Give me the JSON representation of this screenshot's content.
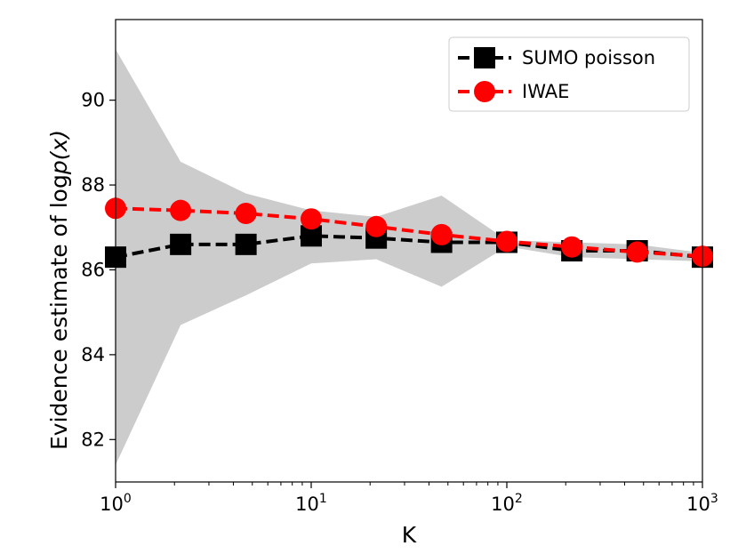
{
  "chart_data": {
    "type": "line",
    "title": "",
    "xlabel": "K",
    "ylabel_prefix": "Evidence estimate of log",
    "ylabel_math": "p(x)",
    "xscale": "log",
    "xlim": [
      1,
      1000
    ],
    "ylim": [
      81.0,
      91.9
    ],
    "x_ticks": [
      {
        "base": "10",
        "exp": "0",
        "value": 1
      },
      {
        "base": "10",
        "exp": "1",
        "value": 10
      },
      {
        "base": "10",
        "exp": "2",
        "value": 100
      },
      {
        "base": "10",
        "exp": "3",
        "value": 1000
      }
    ],
    "y_ticks": [
      82,
      84,
      86,
      88,
      90
    ],
    "x": [
      1,
      2.15,
      4.64,
      10,
      21.5,
      46.4,
      100,
      215,
      464,
      1000
    ],
    "series": [
      {
        "name": "SUMO poisson",
        "color": "#000000",
        "marker": "square",
        "values": [
          86.3,
          86.6,
          86.6,
          86.8,
          86.75,
          86.65,
          86.65,
          86.45,
          86.45,
          86.3
        ],
        "band_upper": [
          91.2,
          88.55,
          87.8,
          87.4,
          87.25,
          87.75,
          86.7,
          86.65,
          86.6,
          86.4
        ],
        "band_lower": [
          81.4,
          84.7,
          85.4,
          86.15,
          86.25,
          85.6,
          86.55,
          86.3,
          86.25,
          86.2
        ]
      },
      {
        "name": "IWAE",
        "color": "#ff0000",
        "marker": "circle",
        "values": [
          87.45,
          87.4,
          87.33,
          87.2,
          87.02,
          86.83,
          86.67,
          86.54,
          86.42,
          86.32
        ]
      }
    ],
    "band_color": "#cccccc",
    "legend_position": "top-right",
    "grid": false
  }
}
